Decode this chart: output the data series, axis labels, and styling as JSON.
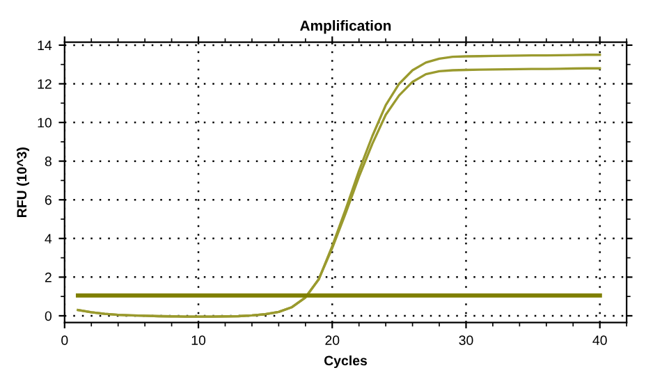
{
  "chart_data": {
    "type": "line",
    "title": "Amplification",
    "xlabel": "Cycles",
    "ylabel": "RFU (10^3)",
    "xlim": [
      0,
      42
    ],
    "ylim": [
      -0.35,
      14.15
    ],
    "xticks": [
      0,
      10,
      20,
      30,
      40
    ],
    "yticks": [
      0,
      2,
      4,
      6,
      8,
      10,
      12,
      14
    ],
    "grid": true,
    "line_style": "solid",
    "marker": "none",
    "series": [
      {
        "color": "#9a9a2e",
        "x": [
          1,
          2,
          3,
          4,
          5,
          6,
          7,
          8,
          9,
          10,
          11,
          12,
          13,
          14,
          15,
          16,
          17,
          18,
          19,
          20,
          21,
          22,
          23,
          24,
          25,
          26,
          27,
          28,
          29,
          30,
          31,
          32,
          33,
          34,
          35,
          36,
          37,
          38,
          39,
          40
        ],
        "values": [
          0.3,
          0.18,
          0.1,
          0.05,
          0.02,
          0,
          -0.02,
          -0.03,
          -0.04,
          -0.04,
          -0.04,
          -0.03,
          -0.02,
          0.02,
          0.08,
          0.2,
          0.45,
          0.95,
          1.9,
          3.6,
          5.5,
          7.5,
          9.3,
          10.9,
          12.0,
          12.7,
          13.1,
          13.3,
          13.4,
          13.42,
          13.43,
          13.44,
          13.45,
          13.46,
          13.47,
          13.47,
          13.48,
          13.49,
          13.5,
          13.5
        ]
      },
      {
        "color": "#9a9a2e",
        "x": [
          1,
          2,
          3,
          4,
          5,
          6,
          7,
          8,
          9,
          10,
          11,
          12,
          13,
          14,
          15,
          16,
          17,
          18,
          19,
          20,
          21,
          22,
          23,
          24,
          25,
          26,
          27,
          28,
          29,
          30,
          31,
          32,
          33,
          34,
          35,
          36,
          37,
          38,
          39,
          40
        ],
        "values": [
          0.3,
          0.18,
          0.1,
          0.05,
          0.02,
          0,
          -0.02,
          -0.03,
          -0.04,
          -0.04,
          -0.04,
          -0.03,
          -0.02,
          0.02,
          0.08,
          0.2,
          0.45,
          0.95,
          1.9,
          3.5,
          5.3,
          7.2,
          8.9,
          10.4,
          11.4,
          12.1,
          12.5,
          12.65,
          12.7,
          12.72,
          12.73,
          12.74,
          12.75,
          12.76,
          12.77,
          12.77,
          12.78,
          12.79,
          12.8,
          12.8
        ]
      },
      {
        "color": "#7f7f00",
        "x": [
          1,
          40
        ],
        "values": [
          1.05,
          1.05
        ]
      }
    ]
  }
}
